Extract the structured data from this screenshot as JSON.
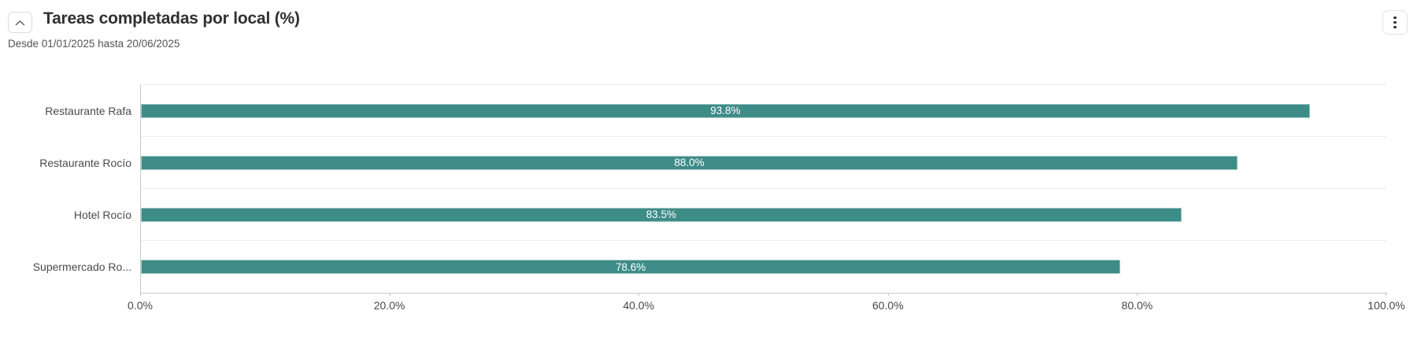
{
  "header": {
    "title": "Tareas completadas por local (%)",
    "subtitle": "Desde 01/01/2025 hasta 20/06/2025",
    "collapse_icon": "chevron-up",
    "menu_icon": "kebab-vertical-dots"
  },
  "chart_data": {
    "type": "bar",
    "orientation": "horizontal",
    "title": "Tareas completadas por local (%)",
    "categories": [
      "Restaurante Rafa",
      "Restaurante Rocío",
      "Hotel Rocío",
      "Supermercado Ro..."
    ],
    "values": [
      93.8,
      88.0,
      83.5,
      78.6
    ],
    "value_labels": [
      "93.8%",
      "88.0%",
      "83.5%",
      "78.6%"
    ],
    "x_tick_labels": [
      "0.0%",
      "20.0%",
      "40.0%",
      "60.0%",
      "80.0%",
      "100.0%"
    ],
    "xlim": [
      0,
      100
    ],
    "ylabel": "",
    "xlabel": "",
    "legend": "none",
    "grid": "category-split-lines-only",
    "bar_color": "#3E8C87",
    "bar_border_color": "#a3cac7",
    "value_label_color": "#ffffff",
    "axis_line_color": "#c9c9c9",
    "grid_line_color": "#ededed"
  }
}
